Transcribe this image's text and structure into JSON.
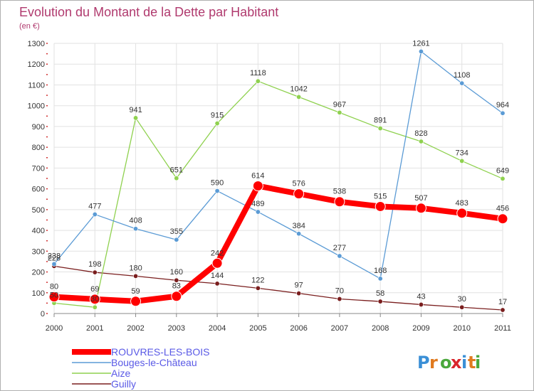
{
  "chart_data": {
    "type": "line",
    "title": "Evolution du Montant de la Dette par Habitant",
    "subtitle": "(en €)",
    "xlabel": "",
    "ylabel": "",
    "x": [
      "2000",
      "2001",
      "2002",
      "2003",
      "2004",
      "2005",
      "2006",
      "2007",
      "2008",
      "2009",
      "2010",
      "2011"
    ],
    "ylim": [
      0,
      1300
    ],
    "yticks": [
      0,
      100,
      200,
      300,
      400,
      500,
      600,
      700,
      800,
      900,
      1000,
      1100,
      1200,
      1300
    ],
    "grid": true,
    "legend_position": "bottom-left",
    "series": [
      {
        "name": "Guilly",
        "color": "#7a1e1e",
        "values": [
          228,
          198,
          180,
          160,
          144,
          122,
          97,
          70,
          58,
          43,
          30,
          17
        ]
      },
      {
        "name": "Aize",
        "color": "#8fd14f",
        "values": [
          50,
          30,
          941,
          651,
          915,
          1118,
          1042,
          967,
          891,
          828,
          734,
          649
        ]
      },
      {
        "name": "Bouges-le-Château",
        "color": "#5b9bd5",
        "values": [
          238,
          477,
          408,
          355,
          590,
          489,
          384,
          277,
          168,
          1261,
          1108,
          964
        ]
      },
      {
        "name": "ROUVRES-LES-BOIS",
        "color": "#ff0000",
        "values": [
          80,
          69,
          59,
          83,
          242,
          614,
          576,
          538,
          515,
          507,
          483,
          456
        ]
      }
    ],
    "legend_order": [
      "ROUVRES-LES-BOIS",
      "Bouges-le-Château",
      "Aize",
      "Guilly"
    ]
  },
  "logo": {
    "text": "Proxiti"
  }
}
